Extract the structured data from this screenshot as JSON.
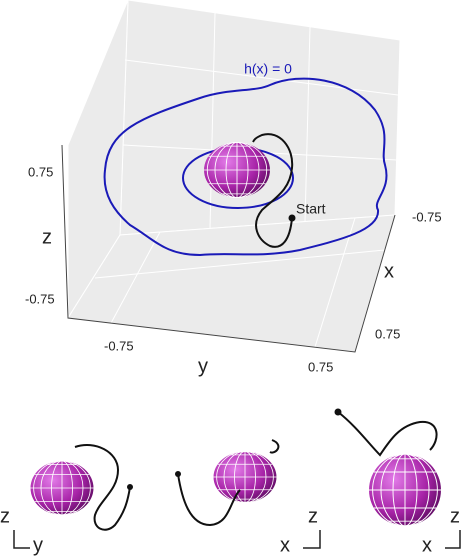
{
  "main_panel": {
    "level_set_label": "h(x) = 0",
    "start_label": "Start",
    "axes": {
      "x": {
        "label": "x",
        "ticks": [
          "-0.75",
          "0.75"
        ]
      },
      "y": {
        "label": "y",
        "ticks": [
          "-0.75",
          "0.75"
        ]
      },
      "z": {
        "label": "z",
        "ticks": [
          "-0.75",
          "0.75"
        ]
      }
    }
  },
  "views": [
    {
      "vertical": "z",
      "horizontal": "y"
    },
    {
      "vertical": "z",
      "horizontal": "x"
    },
    {
      "vertical": "z",
      "horizontal": "x"
    }
  ]
}
